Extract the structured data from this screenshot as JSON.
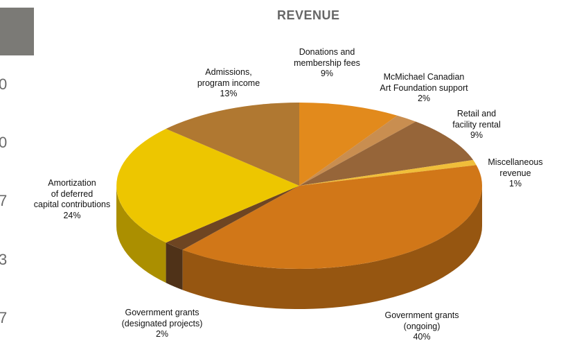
{
  "side_numbers": [
    "0",
    "0",
    "7",
    "3",
    "7"
  ],
  "colors": {
    "page_bg": "#ffffff",
    "gray_block": "#7b7a76",
    "title": "#666666"
  },
  "chart_data": {
    "type": "pie",
    "style": "3d",
    "title": "REVENUE",
    "slices": [
      {
        "label_lines": [
          "Donations and",
          "membership fees"
        ],
        "value": 9,
        "value_label": "9%",
        "color": "#E28A1C"
      },
      {
        "label_lines": [
          "McMichael Canadian",
          "Art Foundation support"
        ],
        "value": 2,
        "value_label": "2%",
        "color": "#C98E50"
      },
      {
        "label_lines": [
          "Retail and",
          "facility rental"
        ],
        "value": 9,
        "value_label": "9%",
        "color": "#966539"
      },
      {
        "label_lines": [
          "Miscellaneous",
          "revenue"
        ],
        "value": 1,
        "value_label": "1%",
        "color": "#F0BE3A"
      },
      {
        "label_lines": [
          "Government grants",
          "(ongoing)"
        ],
        "value": 40,
        "value_label": "40%",
        "color": "#D17718"
      },
      {
        "label_lines": [
          "Government grants",
          "(designated projects)"
        ],
        "value": 2,
        "value_label": "2%",
        "color": "#6E4522"
      },
      {
        "label_lines": [
          "Amortization",
          "of deferred",
          "capital contributions"
        ],
        "value": 24,
        "value_label": "24%",
        "color": "#EDC600"
      },
      {
        "label_lines": [
          "Admissions,",
          "program income"
        ],
        "value": 13,
        "value_label": "13%",
        "color": "#B07831"
      }
    ]
  }
}
